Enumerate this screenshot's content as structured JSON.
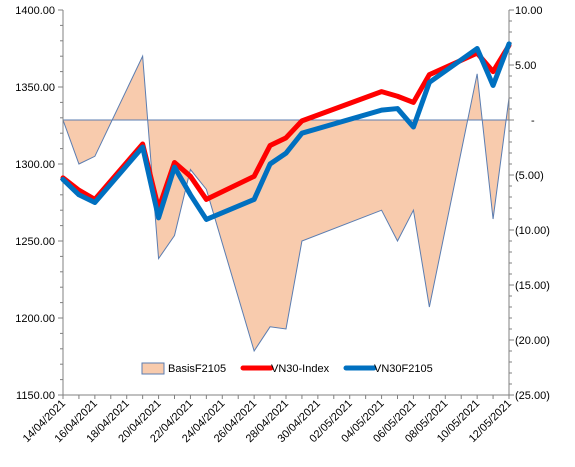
{
  "chart_data": {
    "type": "line",
    "x": [
      "14/04/2021",
      "15/04/2021",
      "16/04/2021",
      "19/04/2021",
      "20/04/2021",
      "21/04/2021",
      "22/04/2021",
      "23/04/2021",
      "26/04/2021",
      "27/04/2021",
      "28/04/2021",
      "29/04/2021",
      "04/05/2021",
      "05/05/2021",
      "06/05/2021",
      "07/05/2021",
      "10/05/2021",
      "11/05/2021",
      "12/05/2021"
    ],
    "x_tick_labels": [
      "14/04/2021",
      "16/04/2021",
      "18/04/2021",
      "20/04/2021",
      "22/04/2021",
      "24/04/2021",
      "26/04/2021",
      "28/04/2021",
      "30/04/2021",
      "02/05/2021",
      "04/05/2021",
      "06/05/2021",
      "08/05/2021",
      "10/05/2021",
      "12/05/2021"
    ],
    "series": [
      {
        "name": "BasisF2105",
        "kind": "area",
        "axis": "right",
        "color": "#F8CBAD",
        "edge_color": "#5B7DB1",
        "values": [
          0.0,
          -4.0,
          -3.3,
          5.8,
          -12.6,
          -10.5,
          -4.5,
          -6.3,
          -21.0,
          -18.8,
          -19.0,
          -11.0,
          -8.2,
          -11.0,
          -8.2,
          -17.0,
          4.2,
          -9.0,
          2.0
        ]
      },
      {
        "name": "VN30-Index",
        "kind": "line",
        "axis": "left",
        "color": "#FF0000",
        "values": [
          1291,
          1283,
          1277,
          1313,
          1271,
          1301,
          1292,
          1277,
          1292,
          1312,
          1317,
          1328,
          1347,
          1344,
          1340,
          1358,
          1372,
          1360,
          1377
        ]
      },
      {
        "name": "VN30F2105",
        "kind": "line",
        "axis": "left",
        "color": "#0070C0",
        "values": [
          1290,
          1280,
          1275,
          1311,
          1265,
          1298,
          1280,
          1264,
          1277,
          1300,
          1307,
          1320,
          1335,
          1336,
          1324,
          1353,
          1375,
          1351,
          1378
        ]
      }
    ],
    "y_left": {
      "min": 1150,
      "max": 1400,
      "step": 50,
      "tick_labels": [
        "1150.00",
        "1200.00",
        "1250.00",
        "1300.00",
        "1350.00",
        "1400.00"
      ]
    },
    "y_right": {
      "min": -25,
      "max": 10,
      "step": 5,
      "tick_labels": [
        "(25.00)",
        "(20.00)",
        "(15.00)",
        "(10.00)",
        "(5.00)",
        "-",
        "5.00",
        "10.00"
      ]
    },
    "legend_position": "bottom-center",
    "grid": false,
    "title": "",
    "xlabel": "",
    "ylabel": ""
  }
}
